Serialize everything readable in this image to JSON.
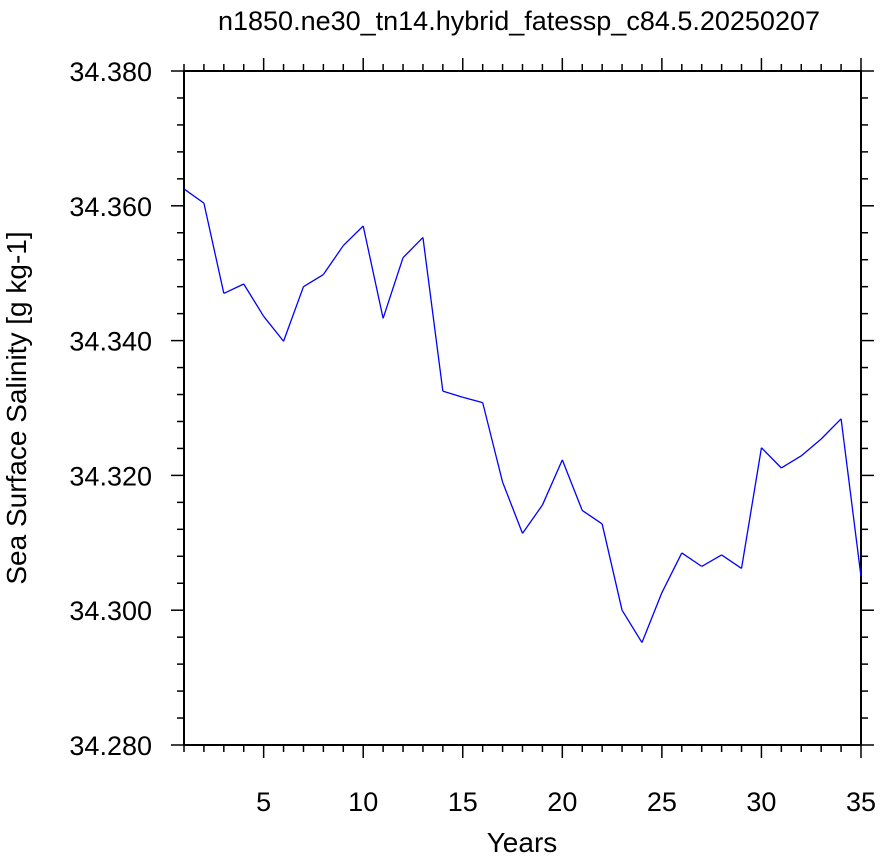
{
  "chart_data": {
    "type": "line",
    "title": "n1850.ne30_tn14.hybrid_fatessp_c84.5.20250207",
    "xlabel": "Years",
    "ylabel": "Sea Surface Salinity [g kg-1]",
    "xlim": [
      1,
      35
    ],
    "ylim": [
      34.28,
      34.38
    ],
    "x_ticks": [
      5,
      10,
      15,
      20,
      25,
      30,
      35
    ],
    "x_tick_labels": [
      "5",
      "10",
      "15",
      "20",
      "25",
      "30",
      "35"
    ],
    "y_ticks": [
      34.28,
      34.3,
      34.32,
      34.34,
      34.36,
      34.38
    ],
    "y_tick_labels": [
      "34.280",
      "34.300",
      "34.320",
      "34.340",
      "34.360",
      "34.380"
    ],
    "grid": false,
    "series": [
      {
        "color": "#0000ff",
        "x": [
          1,
          2,
          3,
          4,
          5,
          6,
          7,
          8,
          9,
          10,
          11,
          12,
          13,
          14,
          15,
          16,
          17,
          18,
          19,
          20,
          21,
          22,
          23,
          24,
          25,
          26,
          27,
          28,
          29,
          30,
          31,
          32,
          33,
          34,
          35
        ],
        "values": [
          34.3625,
          34.3604,
          34.347,
          34.3484,
          34.3436,
          34.3399,
          34.348,
          34.3498,
          34.3541,
          34.357,
          34.3433,
          34.3523,
          34.3553,
          34.3325,
          34.3316,
          34.3308,
          34.319,
          34.3114,
          34.3156,
          34.3223,
          34.3148,
          34.3128,
          34.3,
          34.2952,
          34.3026,
          34.3085,
          34.3065,
          34.3082,
          34.3062,
          34.3241,
          34.3211,
          34.3229,
          34.3254,
          34.3284,
          34.305
        ]
      }
    ]
  }
}
